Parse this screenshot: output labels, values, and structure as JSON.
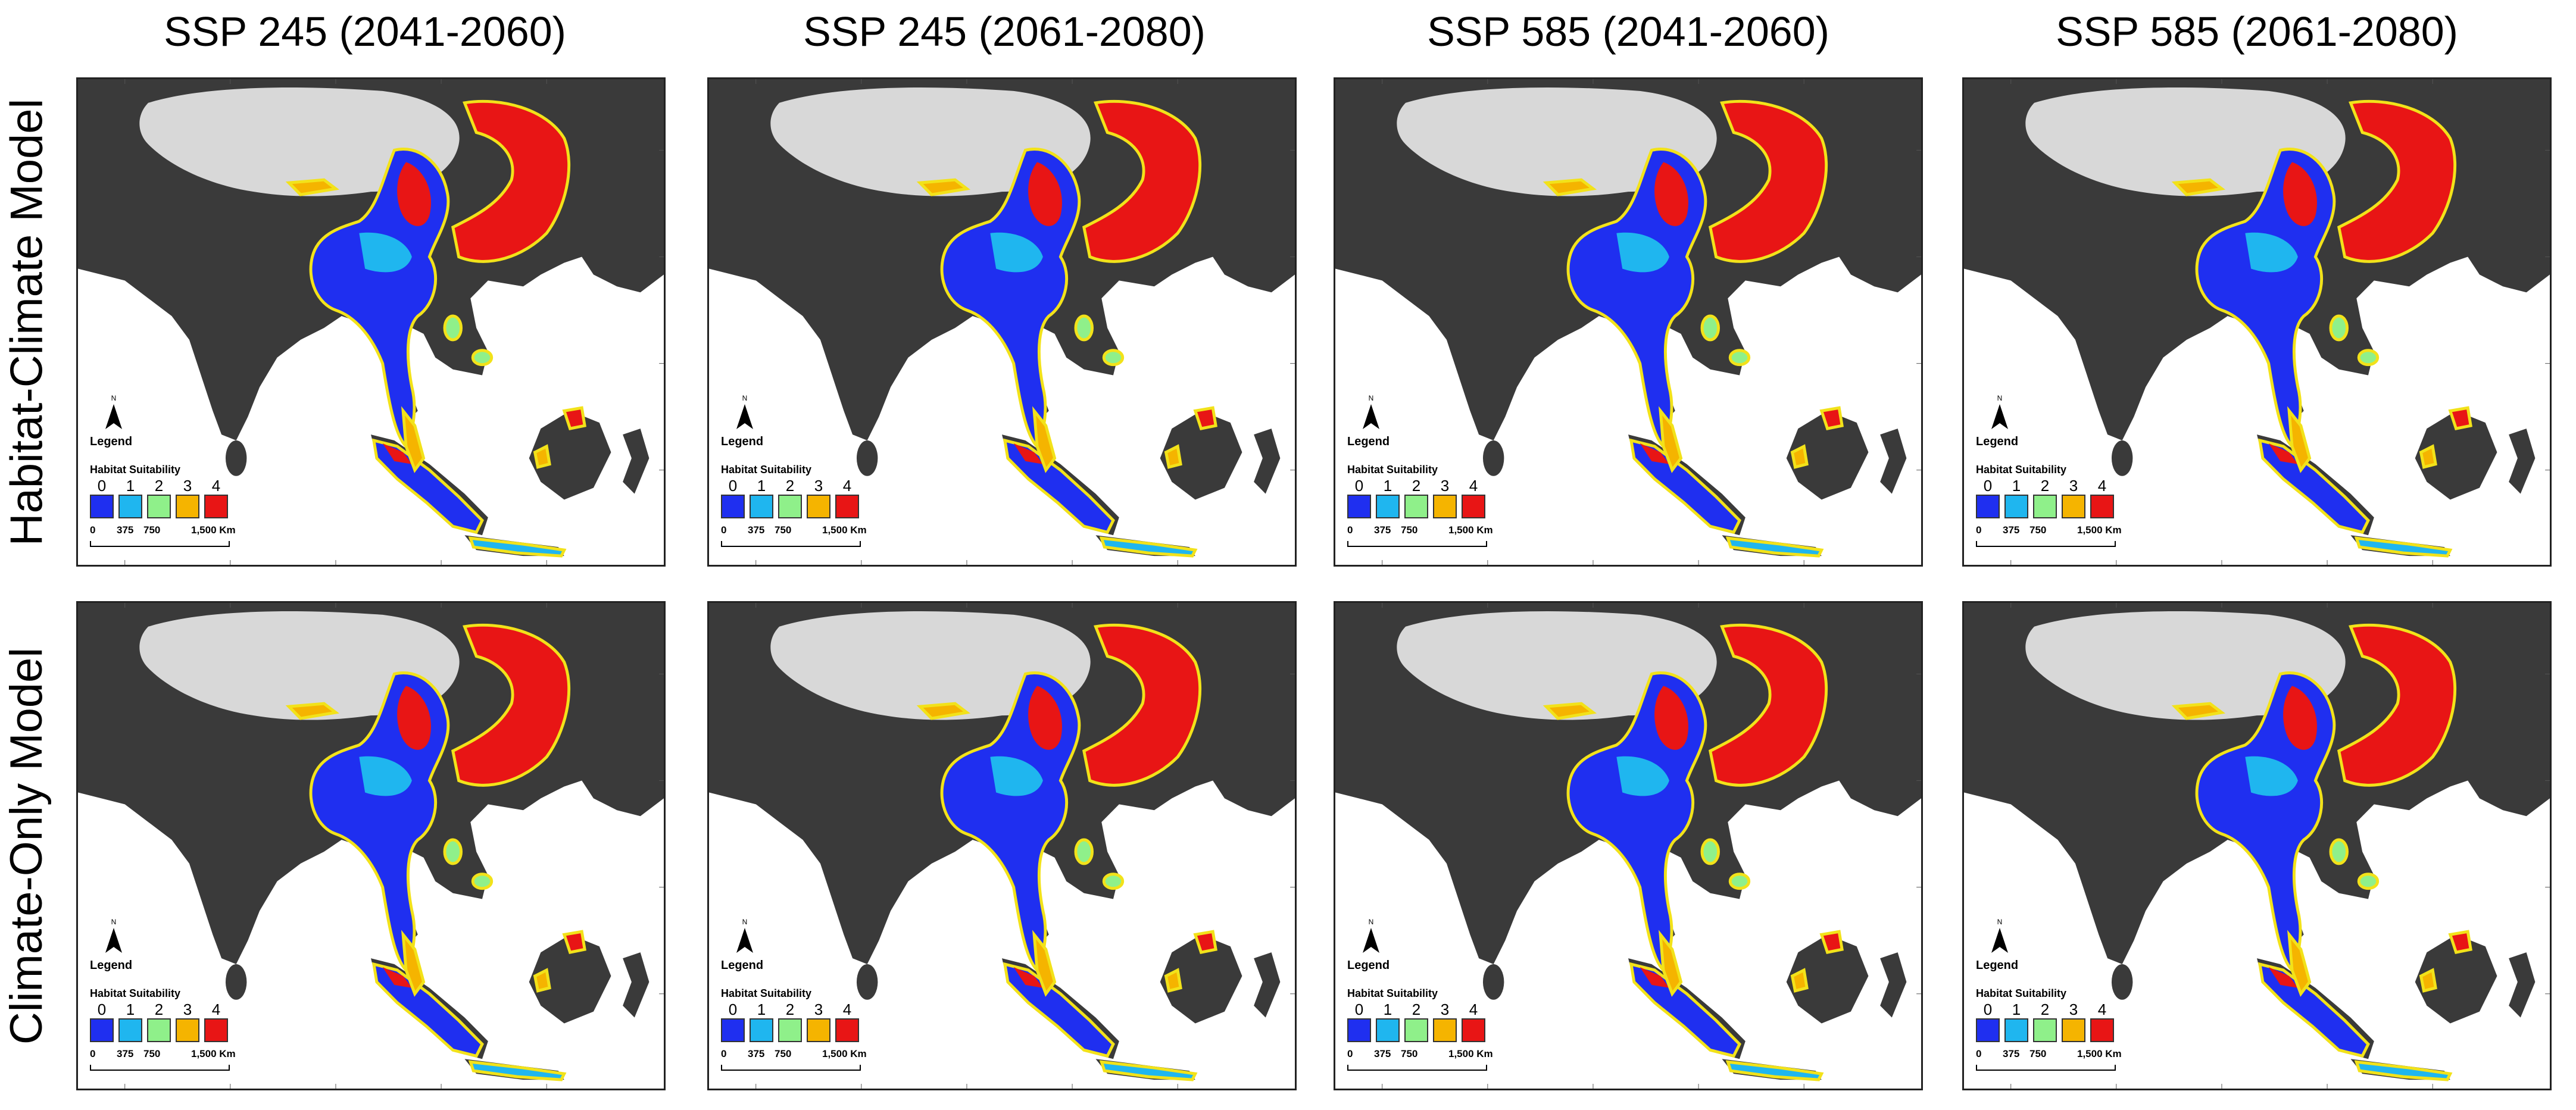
{
  "columns": [
    {
      "title": "SSP 245 (2041-2060)"
    },
    {
      "title": "SSP 245 (2061-2080)"
    },
    {
      "title": "SSP 585 (2041-2060)"
    },
    {
      "title": "SSP 585 (2061-2080)"
    }
  ],
  "rows": [
    {
      "label": "Habitat-Climate Model"
    },
    {
      "label": "Climate-Only Model"
    }
  ],
  "legend": {
    "north": "N",
    "title": "Legend",
    "subtitle": "Habitat Suitability",
    "classes": [
      {
        "label": "0",
        "color": "#1f2ff0"
      },
      {
        "label": "1",
        "color": "#1fb6ef"
      },
      {
        "label": "2",
        "color": "#8ff08a"
      },
      {
        "label": "3",
        "color": "#f5b400"
      },
      {
        "label": "4",
        "color": "#e81515"
      }
    ],
    "scale": {
      "labels": [
        "0",
        "375",
        "750",
        "1,500 Km"
      ]
    }
  },
  "colors": {
    "land": "#3a3a3a",
    "himalaya": "#d8d8d8",
    "range_outline": "#f2e21a",
    "sea": "#ffffff"
  }
}
